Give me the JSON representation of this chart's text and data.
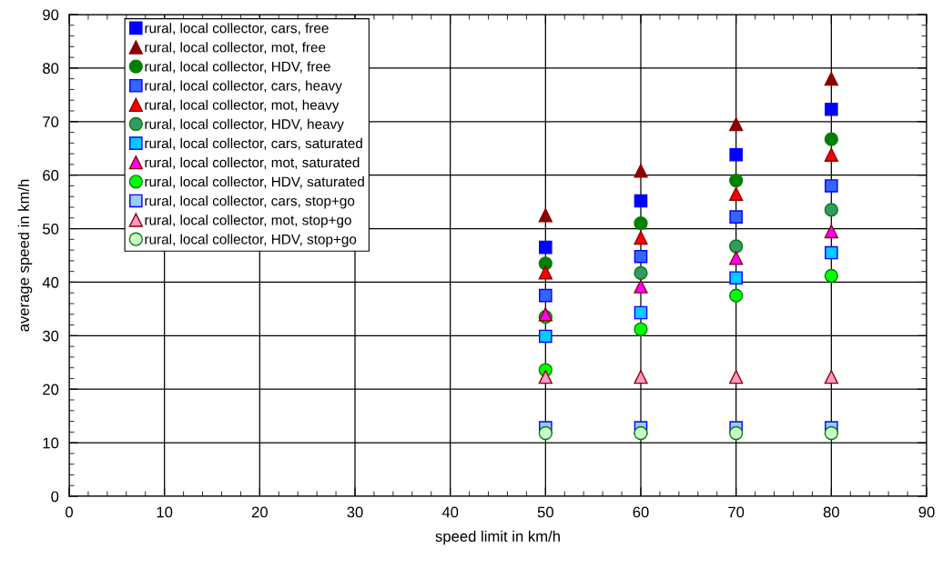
{
  "chart_data": {
    "type": "scatter",
    "xlabel": "speed limit in km/h",
    "ylabel": "average speed in km/h",
    "x": [
      50,
      60,
      70,
      80
    ],
    "xlim": [
      0,
      90
    ],
    "ylim": [
      0,
      90
    ],
    "xticks": [
      0,
      10,
      20,
      30,
      40,
      50,
      60,
      70,
      80,
      90
    ],
    "yticks": [
      0,
      10,
      20,
      30,
      40,
      50,
      60,
      70,
      80,
      90
    ],
    "grid": true,
    "legend": "top left",
    "series": [
      {
        "name": "rural, local collector, cars, free",
        "color": "#0000ff",
        "marker": "square",
        "values": [
          46.5,
          55.2,
          63.8,
          72.3
        ]
      },
      {
        "name": "rural, local collector, mot, free",
        "color": "#8b0000",
        "marker": "triangle",
        "values": [
          52.5,
          60.8,
          69.5,
          78.0
        ]
      },
      {
        "name": "rural, local collector, HDV, free",
        "color": "#008000",
        "marker": "circle",
        "values": [
          43.5,
          51.0,
          59.0,
          66.7
        ]
      },
      {
        "name": "rural, local collector, cars, heavy",
        "color": "#3366ff",
        "marker": "square",
        "values": [
          37.5,
          44.8,
          52.2,
          58.0
        ]
      },
      {
        "name": "rural, local collector, mot, heavy",
        "color": "#ff0000",
        "marker": "triangle",
        "values": [
          41.8,
          48.3,
          56.5,
          63.8
        ]
      },
      {
        "name": "rural, local collector, HDV, heavy",
        "color": "#339966",
        "marker": "circle",
        "values": [
          33.5,
          41.7,
          46.7,
          53.5
        ]
      },
      {
        "name": "rural, local collector, cars, saturated",
        "color": "#00ccff",
        "marker": "square",
        "values": [
          29.9,
          34.3,
          40.8,
          45.5
        ]
      },
      {
        "name": "rural, local collector, mot, saturated",
        "color": "#ff00ff",
        "marker": "triangle",
        "values": [
          34.0,
          39.2,
          44.5,
          49.5
        ]
      },
      {
        "name": "rural, local collector, HDV, saturated",
        "color": "#00ff00",
        "marker": "circle",
        "values": [
          23.6,
          31.2,
          37.5,
          41.2
        ]
      },
      {
        "name": "rural, local collector, cars, stop+go",
        "color": "#99ccff",
        "marker": "square",
        "values": [
          12.8,
          12.8,
          12.8,
          12.8
        ]
      },
      {
        "name": "rural, local collector, mot, stop+go",
        "color": "#ff99cc",
        "marker": "triangle",
        "values": [
          22.3,
          22.3,
          22.3,
          22.3
        ]
      },
      {
        "name": "rural, local collector, HDV, stop+go",
        "color": "#ccffcc",
        "marker": "circle",
        "values": [
          11.8,
          11.8,
          11.8,
          11.8
        ]
      }
    ]
  }
}
